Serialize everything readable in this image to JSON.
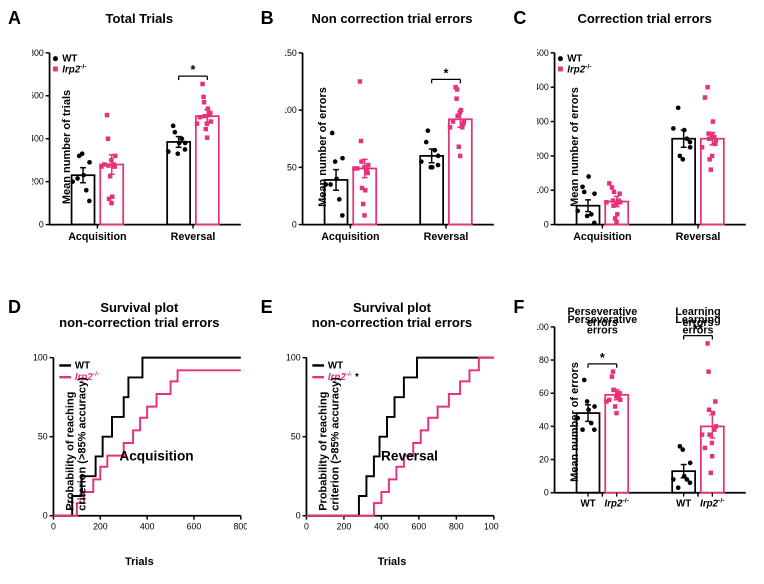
{
  "colors": {
    "wt": "#000000",
    "irp2": "#e6327a",
    "axis": "#000000",
    "bg": "#ffffff",
    "barFill": "none"
  },
  "fontSizes": {
    "title": 13,
    "axisLabel": 11,
    "tick": 9,
    "panelLetter": 18,
    "legend": 10
  },
  "panelA": {
    "letter": "A",
    "title": "Total Trials",
    "ylabel": "Mean number of trials",
    "type": "grouped-bar-scatter",
    "ylim": [
      0,
      800
    ],
    "ytick_step": 200,
    "categories": [
      "Acquisition",
      "Reversal"
    ],
    "legend": {
      "wt": "WT",
      "irp2": "Irp2"
    },
    "sigBars": [
      {
        "group": "Reversal",
        "label": "*"
      }
    ],
    "groups": {
      "Acquisition": {
        "WT": {
          "mean": 230,
          "sem": 35,
          "points": [
            200,
            320,
            215,
            330,
            230,
            160,
            110,
            290
          ]
        },
        "Irp2": {
          "mean": 280,
          "sem": 45,
          "points": [
            270,
            510,
            280,
            400,
            275,
            225,
            130,
            100,
            120,
            300,
            270,
            320,
            280
          ]
        }
      },
      "Reversal": {
        "WT": {
          "mean": 385,
          "sem": 25,
          "points": [
            340,
            430,
            460,
            330,
            380,
            400,
            350,
            380
          ]
        },
        "Irp2": {
          "mean": 505,
          "sem": 30,
          "points": [
            470,
            655,
            500,
            595,
            570,
            445,
            540,
            405,
            505,
            470,
            520,
            480,
            510
          ]
        }
      }
    }
  },
  "panelB": {
    "letter": "B",
    "title": "Non correction trial errors",
    "ylabel": "Mean number of errors",
    "type": "grouped-bar-scatter",
    "ylim": [
      0,
      150
    ],
    "ytick_step": 50,
    "categories": [
      "Acquisition",
      "Reversal"
    ],
    "sigBars": [
      {
        "group": "Reversal",
        "label": "*"
      }
    ],
    "groups": {
      "Acquisition": {
        "WT": {
          "mean": 39,
          "sem": 9,
          "points": [
            35,
            80,
            35,
            55,
            40,
            22,
            8,
            58
          ]
        },
        "Irp2": {
          "mean": 49,
          "sem": 8,
          "points": [
            49,
            125,
            49,
            73,
            55,
            18,
            30,
            8,
            32,
            50,
            45,
            52,
            48
          ]
        }
      },
      "Reversal": {
        "WT": {
          "mean": 60,
          "sem": 6,
          "points": [
            55,
            82,
            72,
            50,
            50,
            65,
            52,
            60
          ]
        },
        "Irp2": {
          "mean": 92,
          "sem": 7,
          "points": [
            85,
            120,
            90,
            110,
            118,
            68,
            100,
            60,
            95,
            98,
            88,
            90,
            85
          ]
        }
      }
    }
  },
  "panelC": {
    "letter": "C",
    "title": "Correction trial errors",
    "ylabel": "Mean number of errors",
    "type": "grouped-bar-scatter",
    "ylim": [
      0,
      500
    ],
    "ytick_step": 100,
    "categories": [
      "Acquisition",
      "Reversal"
    ],
    "legend": {
      "wt": "WT",
      "irp2": "Irp2"
    },
    "sigBars": [],
    "groups": {
      "Acquisition": {
        "WT": {
          "mean": 55,
          "sem": 17,
          "points": [
            40,
            95,
            110,
            25,
            140,
            30,
            5,
            90
          ]
        },
        "Irp2": {
          "mean": 67,
          "sem": 15,
          "points": [
            65,
            108,
            120,
            70,
            55,
            18,
            30,
            8,
            95,
            60,
            90,
            65,
            70
          ]
        }
      },
      "Reversal": {
        "WT": {
          "mean": 250,
          "sem": 25,
          "points": [
            280,
            200,
            340,
            190,
            275,
            250,
            240,
            225
          ]
        },
        "Irp2": {
          "mean": 250,
          "sem": 18,
          "points": [
            225,
            400,
            370,
            265,
            250,
            160,
            300,
            200,
            190,
            260,
            235,
            245,
            255
          ]
        }
      }
    }
  },
  "panelD": {
    "letter": "D",
    "title": "Survival plot\nnon-correction trial errors",
    "ylabel": "Probability of reaching\ncriterion (>85% accuracy)",
    "xlabel": "Trials",
    "annotation": "Acquisition",
    "type": "survival-step",
    "xlim": [
      0,
      800
    ],
    "xtick_step": 200,
    "ylim": [
      0,
      100
    ],
    "ytick_step": 50,
    "legend": {
      "wt": "WT",
      "irp2": "Irp2"
    },
    "series": {
      "WT": [
        [
          0,
          0
        ],
        [
          80,
          0
        ],
        [
          80,
          12.5
        ],
        [
          120,
          12.5
        ],
        [
          120,
          25
        ],
        [
          180,
          25
        ],
        [
          180,
          37.5
        ],
        [
          210,
          37.5
        ],
        [
          210,
          50
        ],
        [
          250,
          50
        ],
        [
          250,
          62.5
        ],
        [
          300,
          62.5
        ],
        [
          300,
          75
        ],
        [
          320,
          75
        ],
        [
          320,
          87.5
        ],
        [
          380,
          87.5
        ],
        [
          380,
          100
        ],
        [
          800,
          100
        ]
      ],
      "Irp2": [
        [
          0,
          0
        ],
        [
          100,
          0
        ],
        [
          100,
          8
        ],
        [
          130,
          8
        ],
        [
          130,
          15
        ],
        [
          170,
          15
        ],
        [
          170,
          23
        ],
        [
          200,
          23
        ],
        [
          200,
          31
        ],
        [
          230,
          31
        ],
        [
          230,
          38
        ],
        [
          300,
          38
        ],
        [
          300,
          46
        ],
        [
          340,
          46
        ],
        [
          340,
          54
        ],
        [
          370,
          54
        ],
        [
          370,
          62
        ],
        [
          400,
          62
        ],
        [
          400,
          69
        ],
        [
          440,
          69
        ],
        [
          440,
          77
        ],
        [
          500,
          77
        ],
        [
          500,
          85
        ],
        [
          530,
          85
        ],
        [
          530,
          92
        ],
        [
          660,
          92
        ],
        [
          660,
          92
        ],
        [
          800,
          92
        ]
      ]
    }
  },
  "panelE": {
    "letter": "E",
    "title": "Survival plot\nnon-correction trial errors",
    "ylabel": "Probability of reaching\ncriterion (>85% accuracy)",
    "xlabel": "Trials",
    "annotation": "Reversal",
    "type": "survival-step",
    "xlim": [
      0,
      1000
    ],
    "xtick_step": 200,
    "ylim": [
      0,
      100
    ],
    "ytick_step": 50,
    "legend": {
      "wt": "WT",
      "irp2": "Irp2",
      "irp2_suffix": " *"
    },
    "series": {
      "WT": [
        [
          0,
          0
        ],
        [
          280,
          0
        ],
        [
          280,
          12.5
        ],
        [
          320,
          12.5
        ],
        [
          320,
          25
        ],
        [
          360,
          25
        ],
        [
          360,
          37.5
        ],
        [
          390,
          37.5
        ],
        [
          390,
          50
        ],
        [
          430,
          50
        ],
        [
          430,
          62.5
        ],
        [
          470,
          62.5
        ],
        [
          470,
          75
        ],
        [
          520,
          75
        ],
        [
          520,
          87.5
        ],
        [
          590,
          87.5
        ],
        [
          590,
          100
        ],
        [
          1000,
          100
        ]
      ],
      "Irp2": [
        [
          0,
          0
        ],
        [
          360,
          0
        ],
        [
          360,
          8
        ],
        [
          400,
          8
        ],
        [
          400,
          15
        ],
        [
          440,
          15
        ],
        [
          440,
          23
        ],
        [
          480,
          23
        ],
        [
          480,
          31
        ],
        [
          520,
          31
        ],
        [
          520,
          38
        ],
        [
          570,
          38
        ],
        [
          570,
          46
        ],
        [
          610,
          46
        ],
        [
          610,
          54
        ],
        [
          650,
          54
        ],
        [
          650,
          62
        ],
        [
          700,
          62
        ],
        [
          700,
          69
        ],
        [
          760,
          69
        ],
        [
          760,
          77
        ],
        [
          820,
          77
        ],
        [
          820,
          85
        ],
        [
          870,
          85
        ],
        [
          870,
          92
        ],
        [
          920,
          92
        ],
        [
          920,
          100
        ],
        [
          1000,
          100
        ]
      ]
    }
  },
  "panelF": {
    "letter": "F",
    "title": "",
    "ylabel": "Mean number of errors",
    "type": "grouped-bar-scatter",
    "ylim": [
      0,
      100
    ],
    "ytick_step": 20,
    "subtitles": [
      "Perseverative\nerrors",
      "Learning\nerrors"
    ],
    "xlabels_per_bar": [
      "WT",
      "Irp2",
      "WT",
      "Irp2"
    ],
    "sigBars": [
      {
        "group": 0,
        "label": "*"
      },
      {
        "group": 1,
        "label": "**"
      }
    ],
    "groups": {
      "Perseverative": {
        "WT": {
          "mean": 48,
          "sem": 5,
          "points": [
            45,
            68,
            38,
            55,
            50,
            42,
            38,
            52
          ]
        },
        "Irp2": {
          "mean": 59,
          "sem": 3,
          "points": [
            55,
            70,
            56,
            73,
            62,
            52,
            60,
            48,
            62,
            58,
            60,
            56,
            58
          ]
        }
      },
      "Learning": {
        "WT": {
          "mean": 13,
          "sem": 4,
          "points": [
            8,
            28,
            3,
            26,
            10,
            8,
            6,
            18
          ]
        },
        "Irp2": {
          "mean": 40,
          "sem": 7,
          "points": [
            35,
            90,
            27,
            73,
            50,
            12,
            48,
            22,
            35,
            30,
            55,
            40,
            38
          ]
        }
      }
    }
  }
}
